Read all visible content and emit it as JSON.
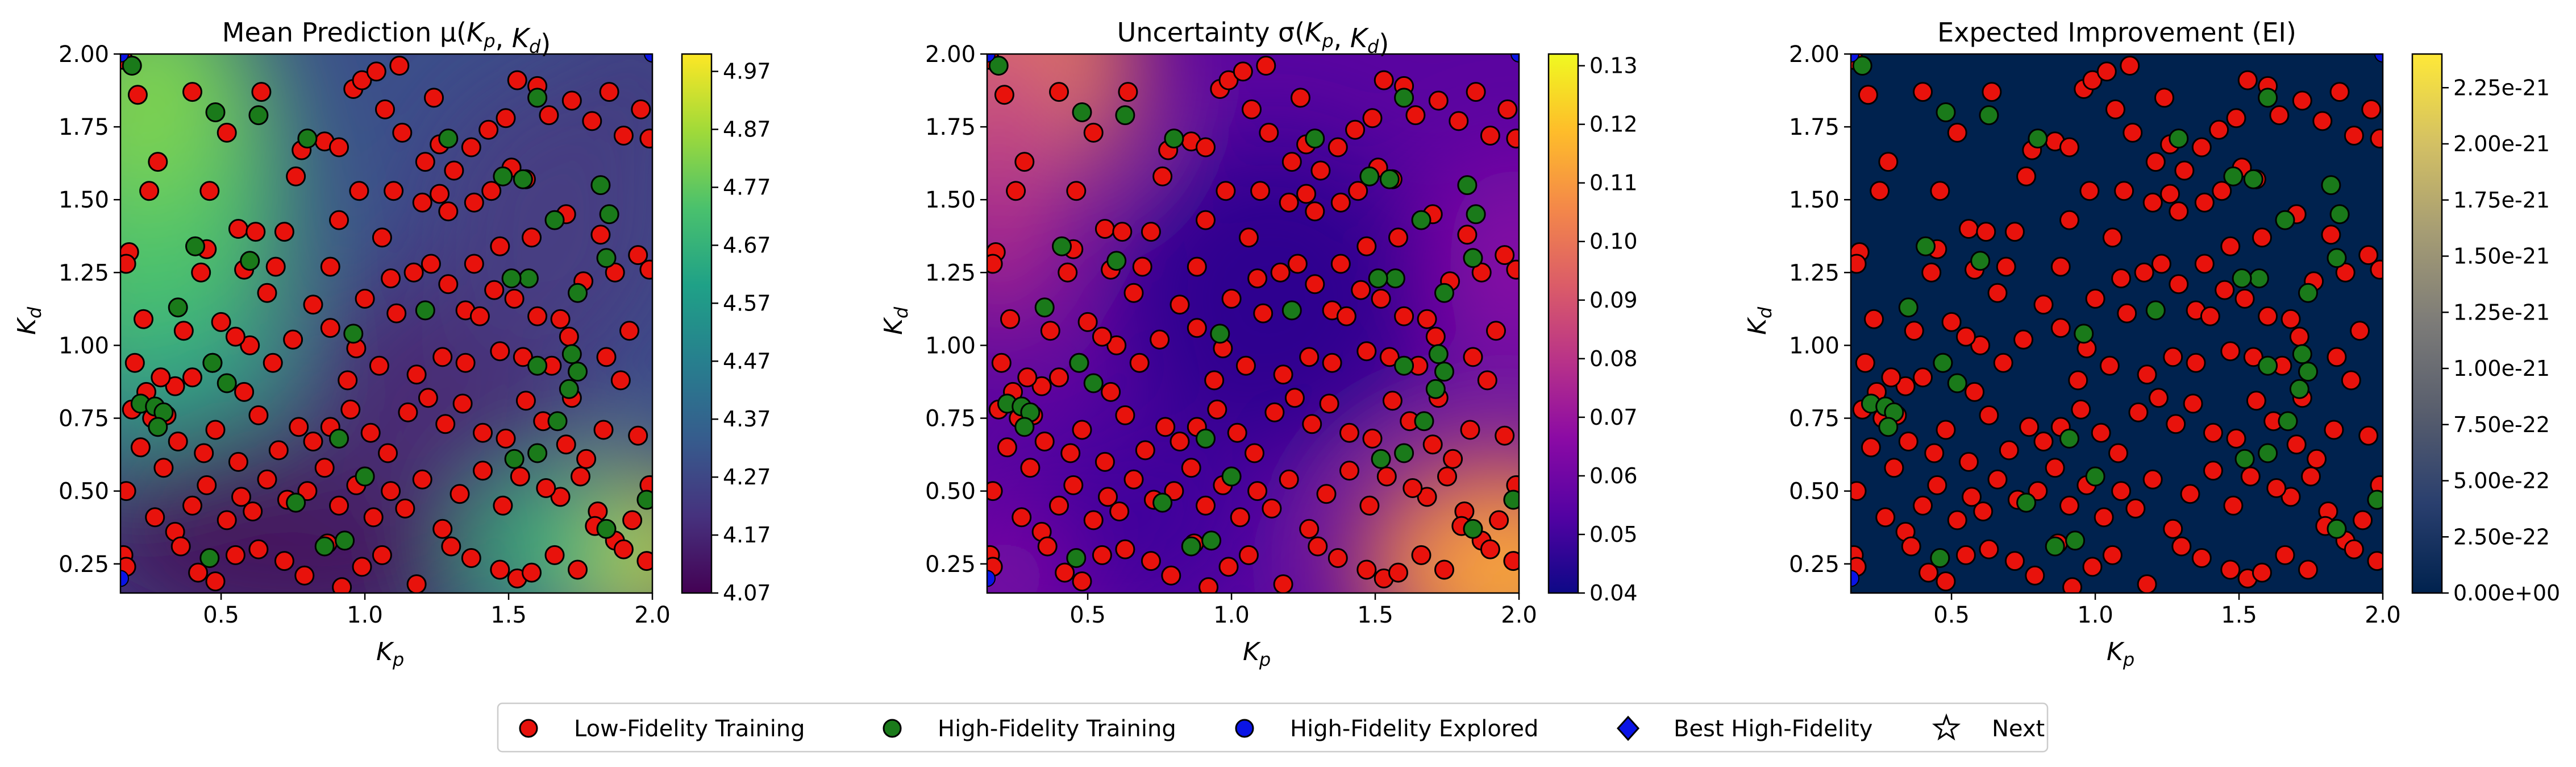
{
  "figure": {
    "panels": [
      {
        "title": "Mean Prediction μ(K_p, K_d)",
        "xlabel": "K_p",
        "ylabel": "K_d",
        "colorbar_ticks": [
          "4.07",
          "4.17",
          "4.27",
          "4.37",
          "4.47",
          "4.57",
          "4.67",
          "4.77",
          "4.87",
          "4.97"
        ],
        "colormap": "viridis"
      },
      {
        "title": "Uncertainty σ(K_p, K_d)",
        "xlabel": "K_p",
        "ylabel": "K_d",
        "colorbar_ticks": [
          "0.04",
          "0.05",
          "0.06",
          "0.07",
          "0.08",
          "0.09",
          "0.10",
          "0.11",
          "0.12",
          "0.13"
        ],
        "colormap": "plasma"
      },
      {
        "title": "Expected Improvement (EI)",
        "xlabel": "K_p",
        "ylabel": "K_d",
        "colorbar_ticks": [
          "0.00e+00",
          "2.50e-22",
          "5.00e-22",
          "7.50e-22",
          "1.00e-21",
          "1.25e-21",
          "1.50e-21",
          "1.75e-21",
          "2.00e-21",
          "2.25e-21"
        ],
        "colormap": "cividis"
      }
    ],
    "legend": [
      {
        "label": "Low-Fidelity Training",
        "marker": "circle",
        "color": "#e8120c"
      },
      {
        "label": "High-Fidelity Training",
        "marker": "circle",
        "color": "#1a7a1a"
      },
      {
        "label": "High-Fidelity Explored",
        "marker": "circle",
        "color": "#0a14e6"
      },
      {
        "label": "Best High-Fidelity",
        "marker": "diamond",
        "color": "#0a14e6"
      },
      {
        "label": "Next",
        "marker": "star",
        "color": "#ffffff"
      }
    ]
  },
  "chart_data": [
    {
      "type": "heatmap",
      "title": "Mean Prediction μ(K_p, K_d)",
      "xlabel": "K_p",
      "ylabel": "K_d",
      "xlim": [
        0.15,
        2.0
      ],
      "ylim": [
        0.15,
        2.0
      ],
      "xticks": [
        0.5,
        1.0,
        1.5,
        2.0
      ],
      "yticks": [
        0.25,
        0.5,
        0.75,
        1.0,
        1.25,
        1.5,
        1.75,
        2.0
      ],
      "colorbar_range": [
        4.07,
        5.0
      ],
      "colormap": "viridis"
    },
    {
      "type": "heatmap",
      "title": "Uncertainty σ(K_p, K_d)",
      "xlabel": "K_p",
      "ylabel": "K_d",
      "xlim": [
        0.15,
        2.0
      ],
      "ylim": [
        0.15,
        2.0
      ],
      "xticks": [
        0.5,
        1.0,
        1.5,
        2.0
      ],
      "yticks": [
        0.25,
        0.5,
        0.75,
        1.0,
        1.25,
        1.5,
        1.75,
        2.0
      ],
      "colorbar_range": [
        0.04,
        0.132
      ],
      "colormap": "plasma"
    },
    {
      "type": "heatmap",
      "title": "Expected Improvement (EI)",
      "xlabel": "K_p",
      "ylabel": "K_d",
      "xlim": [
        0.15,
        2.0
      ],
      "ylim": [
        0.15,
        2.0
      ],
      "xticks": [
        0.5,
        1.0,
        1.5,
        2.0
      ],
      "yticks": [
        0.25,
        0.5,
        0.75,
        1.0,
        1.25,
        1.5,
        1.75,
        2.0
      ],
      "colorbar_range": [
        0.0,
        2.4e-21
      ],
      "colormap": "cividis"
    }
  ],
  "scatter": {
    "low_fidelity": [
      [
        0.16,
        1.98
      ],
      [
        0.21,
        1.86
      ],
      [
        0.25,
        1.53
      ],
      [
        0.28,
        1.63
      ],
      [
        0.18,
        1.32
      ],
      [
        0.17,
        1.28
      ],
      [
        0.23,
        1.09
      ],
      [
        0.19,
        0.78
      ],
      [
        0.26,
        0.75
      ],
      [
        0.31,
        0.76
      ],
      [
        0.17,
        0.5
      ],
      [
        0.27,
        0.41
      ],
      [
        0.34,
        0.36
      ],
      [
        0.16,
        0.28
      ],
      [
        0.17,
        0.24
      ],
      [
        0.37,
        1.05
      ],
      [
        0.43,
        1.25
      ],
      [
        0.45,
        1.33
      ],
      [
        0.4,
        1.87
      ],
      [
        0.46,
        1.53
      ],
      [
        0.56,
        1.4
      ],
      [
        0.58,
        1.26
      ],
      [
        0.62,
        1.39
      ],
      [
        0.69,
        1.27
      ],
      [
        0.72,
        1.39
      ],
      [
        0.76,
        1.58
      ],
      [
        0.78,
        1.67
      ],
      [
        0.86,
        1.7
      ],
      [
        0.91,
        1.43
      ],
      [
        0.98,
        1.53
      ],
      [
        0.91,
        1.68
      ],
      [
        0.96,
        1.88
      ],
      [
        0.99,
        1.91
      ],
      [
        1.04,
        1.94
      ],
      [
        1.07,
        1.81
      ],
      [
        1.13,
        1.73
      ],
      [
        1.12,
        1.96
      ],
      [
        1.21,
        1.63
      ],
      [
        1.24,
        1.85
      ],
      [
        1.26,
        1.69
      ],
      [
        1.31,
        1.6
      ],
      [
        1.37,
        1.68
      ],
      [
        1.43,
        1.74
      ],
      [
        1.49,
        1.78
      ],
      [
        1.53,
        1.91
      ],
      [
        1.6,
        1.89
      ],
      [
        1.64,
        1.79
      ],
      [
        1.72,
        1.84
      ],
      [
        1.79,
        1.77
      ],
      [
        1.85,
        1.87
      ],
      [
        1.9,
        1.72
      ],
      [
        1.96,
        1.81
      ],
      [
        1.99,
        1.71
      ],
      [
        1.56,
        1.57
      ],
      [
        1.51,
        1.61
      ],
      [
        1.44,
        1.53
      ],
      [
        1.38,
        1.49
      ],
      [
        1.29,
        1.46
      ],
      [
        1.2,
        1.49
      ],
      [
        1.26,
        1.52
      ],
      [
        0.88,
        1.27
      ],
      [
        1.06,
        1.37
      ],
      [
        1.09,
        1.23
      ],
      [
        1.17,
        1.25
      ],
      [
        1.23,
        1.28
      ],
      [
        1.29,
        1.21
      ],
      [
        1.35,
        1.12
      ],
      [
        1.4,
        1.1
      ],
      [
        1.45,
        1.19
      ],
      [
        1.52,
        1.16
      ],
      [
        1.6,
        1.1
      ],
      [
        1.68,
        1.09
      ],
      [
        1.76,
        1.22
      ],
      [
        1.82,
        1.38
      ],
      [
        1.87,
        1.25
      ],
      [
        1.95,
        1.31
      ],
      [
        1.99,
        1.26
      ],
      [
        1.92,
        1.05
      ],
      [
        1.84,
        0.96
      ],
      [
        1.71,
        1.03
      ],
      [
        1.65,
        0.93
      ],
      [
        1.55,
        0.96
      ],
      [
        1.47,
        0.98
      ],
      [
        1.35,
        0.94
      ],
      [
        1.27,
        0.96
      ],
      [
        1.18,
        0.9
      ],
      [
        1.05,
        0.93
      ],
      [
        0.97,
        0.99
      ],
      [
        0.88,
        1.06
      ],
      [
        0.75,
        1.02
      ],
      [
        0.68,
        0.94
      ],
      [
        0.6,
        1.0
      ],
      [
        0.55,
        1.03
      ],
      [
        0.5,
        1.08
      ],
      [
        0.47,
        0.94
      ],
      [
        0.4,
        0.89
      ],
      [
        0.34,
        0.86
      ],
      [
        0.29,
        0.89
      ],
      [
        0.35,
        0.67
      ],
      [
        0.44,
        0.63
      ],
      [
        0.48,
        0.71
      ],
      [
        0.56,
        0.6
      ],
      [
        0.63,
        0.76
      ],
      [
        0.7,
        0.64
      ],
      [
        0.77,
        0.72
      ],
      [
        0.82,
        0.67
      ],
      [
        0.88,
        0.72
      ],
      [
        0.95,
        0.78
      ],
      [
        1.02,
        0.7
      ],
      [
        1.08,
        0.63
      ],
      [
        1.15,
        0.77
      ],
      [
        1.22,
        0.82
      ],
      [
        1.28,
        0.73
      ],
      [
        1.34,
        0.8
      ],
      [
        1.41,
        0.7
      ],
      [
        1.49,
        0.68
      ],
      [
        1.56,
        0.81
      ],
      [
        1.62,
        0.74
      ],
      [
        1.7,
        0.66
      ],
      [
        1.77,
        0.61
      ],
      [
        1.83,
        0.71
      ],
      [
        1.89,
        0.88
      ],
      [
        1.95,
        0.69
      ],
      [
        1.99,
        0.52
      ],
      [
        1.93,
        0.4
      ],
      [
        1.87,
        0.33
      ],
      [
        1.81,
        0.43
      ],
      [
        1.75,
        0.55
      ],
      [
        1.68,
        0.48
      ],
      [
        1.63,
        0.51
      ],
      [
        1.54,
        0.55
      ],
      [
        1.48,
        0.45
      ],
      [
        1.41,
        0.57
      ],
      [
        1.33,
        0.49
      ],
      [
        1.27,
        0.37
      ],
      [
        1.2,
        0.54
      ],
      [
        1.14,
        0.44
      ],
      [
        1.09,
        0.5
      ],
      [
        1.03,
        0.41
      ],
      [
        0.97,
        0.52
      ],
      [
        0.91,
        0.45
      ],
      [
        0.86,
        0.58
      ],
      [
        0.8,
        0.5
      ],
      [
        0.73,
        0.47
      ],
      [
        0.66,
        0.54
      ],
      [
        0.61,
        0.43
      ],
      [
        0.57,
        0.48
      ],
      [
        0.52,
        0.4
      ],
      [
        0.45,
        0.52
      ],
      [
        0.4,
        0.45
      ],
      [
        0.36,
        0.31
      ],
      [
        0.42,
        0.22
      ],
      [
        0.48,
        0.19
      ],
      [
        0.55,
        0.28
      ],
      [
        0.63,
        0.3
      ],
      [
        0.72,
        0.26
      ],
      [
        0.79,
        0.21
      ],
      [
        0.87,
        0.32
      ],
      [
        0.92,
        0.17
      ],
      [
        0.99,
        0.24
      ],
      [
        1.06,
        0.28
      ],
      [
        1.18,
        0.18
      ],
      [
        1.3,
        0.31
      ],
      [
        1.37,
        0.27
      ],
      [
        1.47,
        0.23
      ],
      [
        1.53,
        0.2
      ],
      [
        1.58,
        0.22
      ],
      [
        1.66,
        0.28
      ],
      [
        1.74,
        0.23
      ],
      [
        1.8,
        0.38
      ],
      [
        1.9,
        0.3
      ],
      [
        1.98,
        0.26
      ],
      [
        0.2,
        0.94
      ],
      [
        0.24,
        0.84
      ],
      [
        0.22,
        0.65
      ],
      [
        0.3,
        0.58
      ],
      [
        0.66,
        1.18
      ],
      [
        0.82,
        1.14
      ],
      [
        1.0,
        1.16
      ],
      [
        1.47,
        1.34
      ],
      [
        1.58,
        1.37
      ],
      [
        1.7,
        1.45
      ],
      [
        0.64,
        1.87
      ],
      [
        1.11,
        1.11
      ],
      [
        1.38,
        1.28
      ],
      [
        0.94,
        0.88
      ],
      [
        0.58,
        0.84
      ],
      [
        1.72,
        0.82
      ],
      [
        1.1,
        1.53
      ],
      [
        0.52,
        1.73
      ]
    ],
    "high_fidelity": [
      [
        0.19,
        1.96
      ],
      [
        0.48,
        1.8
      ],
      [
        0.63,
        1.79
      ],
      [
        0.8,
        1.71
      ],
      [
        0.41,
        1.34
      ],
      [
        0.6,
        1.29
      ],
      [
        0.35,
        1.13
      ],
      [
        0.47,
        0.94
      ],
      [
        0.22,
        0.8
      ],
      [
        0.27,
        0.79
      ],
      [
        0.3,
        0.77
      ],
      [
        0.28,
        0.72
      ],
      [
        0.91,
        0.68
      ],
      [
        0.52,
        0.87
      ],
      [
        0.46,
        0.27
      ],
      [
        1.6,
        1.85
      ],
      [
        1.48,
        1.58
      ],
      [
        1.55,
        1.57
      ],
      [
        1.66,
        1.43
      ],
      [
        1.82,
        1.55
      ],
      [
        1.84,
        1.3
      ],
      [
        1.85,
        1.45
      ],
      [
        1.74,
        1.18
      ],
      [
        1.57,
        1.23
      ],
      [
        1.51,
        1.23
      ],
      [
        1.21,
        1.12
      ],
      [
        1.6,
        0.93
      ],
      [
        1.74,
        0.91
      ],
      [
        1.71,
        0.85
      ],
      [
        1.67,
        0.74
      ],
      [
        1.52,
        0.61
      ],
      [
        1.6,
        0.63
      ],
      [
        0.96,
        1.04
      ],
      [
        0.76,
        0.46
      ],
      [
        0.86,
        0.31
      ],
      [
        0.93,
        0.33
      ],
      [
        1.0,
        0.55
      ],
      [
        1.84,
        0.37
      ],
      [
        1.98,
        0.47
      ],
      [
        1.29,
        1.71
      ],
      [
        1.72,
        0.97
      ]
    ]
  }
}
